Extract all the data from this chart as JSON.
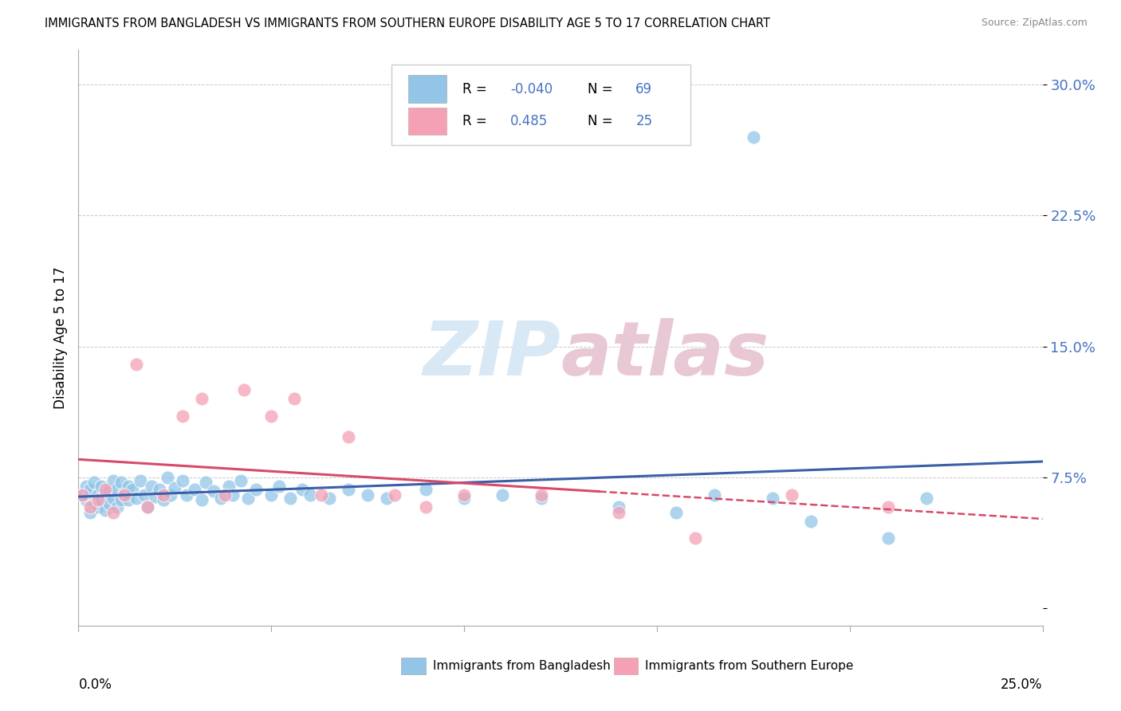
{
  "title": "IMMIGRANTS FROM BANGLADESH VS IMMIGRANTS FROM SOUTHERN EUROPE DISABILITY AGE 5 TO 17 CORRELATION CHART",
  "source": "Source: ZipAtlas.com",
  "ylabel": "Disability Age 5 to 17",
  "y_ticks": [
    0.0,
    0.075,
    0.15,
    0.225,
    0.3
  ],
  "y_tick_labels": [
    "",
    "7.5%",
    "15.0%",
    "22.5%",
    "30.0%"
  ],
  "x_lim": [
    0.0,
    0.25
  ],
  "y_lim": [
    -0.01,
    0.32
  ],
  "legend_label1": "Immigrants from Bangladesh",
  "legend_label2": "Immigrants from Southern Europe",
  "R1": -0.04,
  "N1": 69,
  "R2": 0.485,
  "N2": 25,
  "color1": "#92C5E8",
  "color2": "#F4A0B5",
  "line_color1": "#3A5FA8",
  "line_color2": "#D84A6A",
  "watermark_color": "#D8E8F5",
  "watermark_color2": "#E8C8D4",
  "background_color": "#FFFFFF",
  "grid_color": "#C8C8C8",
  "bangladesh_x": [
    0.001,
    0.002,
    0.002,
    0.003,
    0.003,
    0.004,
    0.004,
    0.005,
    0.005,
    0.006,
    0.006,
    0.007,
    0.007,
    0.008,
    0.008,
    0.009,
    0.009,
    0.01,
    0.01,
    0.011,
    0.011,
    0.012,
    0.013,
    0.013,
    0.014,
    0.015,
    0.016,
    0.017,
    0.018,
    0.019,
    0.02,
    0.021,
    0.022,
    0.023,
    0.024,
    0.025,
    0.027,
    0.028,
    0.03,
    0.032,
    0.033,
    0.035,
    0.037,
    0.039,
    0.04,
    0.042,
    0.044,
    0.046,
    0.05,
    0.052,
    0.055,
    0.058,
    0.06,
    0.065,
    0.07,
    0.075,
    0.08,
    0.09,
    0.1,
    0.11,
    0.12,
    0.14,
    0.155,
    0.165,
    0.18,
    0.19,
    0.21,
    0.22,
    0.175
  ],
  "bangladesh_y": [
    0.065,
    0.07,
    0.062,
    0.068,
    0.055,
    0.072,
    0.06,
    0.065,
    0.058,
    0.07,
    0.062,
    0.066,
    0.056,
    0.068,
    0.06,
    0.073,
    0.063,
    0.068,
    0.058,
    0.072,
    0.062,
    0.066,
    0.07,
    0.062,
    0.068,
    0.063,
    0.073,
    0.065,
    0.058,
    0.07,
    0.064,
    0.068,
    0.062,
    0.075,
    0.065,
    0.069,
    0.073,
    0.065,
    0.068,
    0.062,
    0.072,
    0.067,
    0.063,
    0.07,
    0.065,
    0.073,
    0.063,
    0.068,
    0.065,
    0.07,
    0.063,
    0.068,
    0.065,
    0.063,
    0.068,
    0.065,
    0.063,
    0.068,
    0.063,
    0.065,
    0.063,
    0.058,
    0.055,
    0.065,
    0.063,
    0.05,
    0.04,
    0.063,
    0.27
  ],
  "southern_x": [
    0.001,
    0.003,
    0.005,
    0.007,
    0.009,
    0.012,
    0.015,
    0.018,
    0.022,
    0.027,
    0.032,
    0.038,
    0.043,
    0.05,
    0.056,
    0.063,
    0.07,
    0.082,
    0.09,
    0.1,
    0.12,
    0.14,
    0.16,
    0.185,
    0.21
  ],
  "southern_y": [
    0.065,
    0.058,
    0.062,
    0.068,
    0.055,
    0.065,
    0.14,
    0.058,
    0.065,
    0.11,
    0.12,
    0.065,
    0.125,
    0.11,
    0.12,
    0.065,
    0.098,
    0.065,
    0.058,
    0.065,
    0.065,
    0.055,
    0.04,
    0.065,
    0.058
  ]
}
